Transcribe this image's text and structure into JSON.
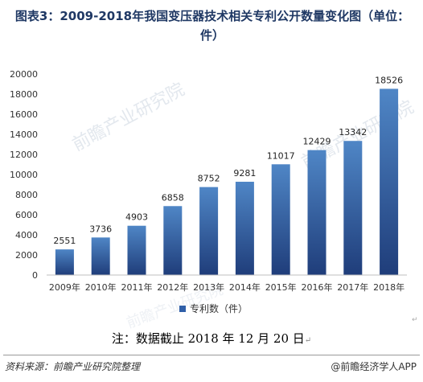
{
  "title": "图表3：2009-2018年我国变压器技术相关专利公开数量变化图（单位：件）",
  "watermark": "前瞻产业研究院",
  "note": "注：数据截止 2018 年 12 月 20 日",
  "note_mark": "↵",
  "source": "资料来源：前瞻产业研究院整理",
  "brand": "@前瞻经济学人APP",
  "corner_mark": "↵",
  "chart_data": {
    "type": "bar",
    "categories": [
      "2009年",
      "2010年",
      "2011年",
      "2012年",
      "2013年",
      "2014年",
      "2015年",
      "2016年",
      "2017年",
      "2018年"
    ],
    "series": [
      {
        "name": "专利数（件）",
        "values": [
          2551,
          3736,
          4903,
          6858,
          8752,
          9281,
          11017,
          12429,
          13342,
          18526
        ]
      }
    ],
    "yticks": [
      0,
      2000,
      4000,
      6000,
      8000,
      10000,
      12000,
      14000,
      16000,
      18000,
      20000
    ],
    "ylim": [
      0,
      20000
    ],
    "grid": false,
    "legend": "bottom-center",
    "colors": {
      "bar_top": "#4f86c6",
      "bar_bottom": "#1f3d7a",
      "title": "#1f3864"
    }
  }
}
